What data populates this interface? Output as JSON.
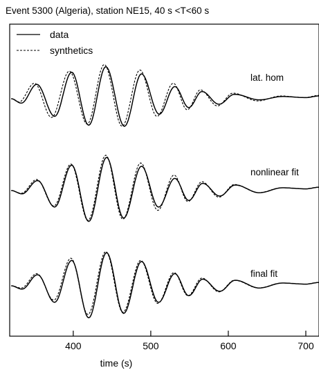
{
  "chart_data": {
    "type": "line",
    "title": "Event 5300 (Algeria), station NE15, 40 s <T<60 s",
    "xlabel": "time (s)",
    "ylabel": "",
    "xlim": [
      318,
      717
    ],
    "xticks": [
      400,
      500,
      600,
      700
    ],
    "xtick_labels": [
      "400",
      "500",
      "600",
      "700"
    ],
    "grid": false,
    "legend": {
      "position": "top-left",
      "entries": [
        {
          "label": "data",
          "style": "solid"
        },
        {
          "label": "synthetics",
          "style": "dashed"
        }
      ]
    },
    "panels": [
      {
        "label": "lat. hom",
        "data": {
          "x": [
            320,
            333,
            353,
            376,
            398,
            420,
            442,
            466,
            488,
            511,
            531,
            549,
            566,
            588,
            608,
            640,
            670,
            700,
            717
          ],
          "y": [
            0.0,
            -0.08,
            0.26,
            -0.32,
            0.48,
            -0.48,
            0.58,
            -0.5,
            0.45,
            -0.28,
            0.22,
            -0.16,
            0.13,
            -0.1,
            0.08,
            -0.02,
            0.04,
            0.02,
            0.05
          ]
        },
        "synthetics": {
          "x": [
            320,
            330,
            350,
            372,
            395,
            418,
            440,
            463,
            486,
            508,
            529,
            547,
            564,
            586,
            606,
            638,
            668,
            698,
            717
          ],
          "y": [
            0.0,
            -0.06,
            0.28,
            -0.34,
            0.5,
            -0.46,
            0.62,
            -0.5,
            0.52,
            -0.32,
            0.28,
            -0.2,
            0.16,
            -0.13,
            0.1,
            -0.04,
            0.05,
            0.02,
            0.06
          ]
        }
      },
      {
        "label": "nonlinear fit",
        "data": {
          "x": [
            320,
            334,
            354,
            376,
            398,
            420,
            443,
            465,
            488,
            510,
            531,
            549,
            567,
            589,
            609,
            640,
            670,
            700,
            717
          ],
          "y": [
            0.0,
            -0.06,
            0.18,
            -0.3,
            0.46,
            -0.56,
            0.6,
            -0.5,
            0.44,
            -0.3,
            0.22,
            -0.18,
            0.13,
            -0.1,
            0.1,
            -0.04,
            0.05,
            0.03,
            0.06
          ]
        },
        "synthetics": {
          "x": [
            320,
            333,
            353,
            375,
            397,
            419,
            442,
            464,
            487,
            509,
            530,
            548,
            566,
            588,
            608,
            639,
            669,
            699,
            717
          ],
          "y": [
            0.0,
            -0.05,
            0.2,
            -0.28,
            0.48,
            -0.54,
            0.64,
            -0.52,
            0.5,
            -0.36,
            0.28,
            -0.2,
            0.16,
            -0.12,
            0.11,
            -0.04,
            0.05,
            0.03,
            0.06
          ]
        }
      },
      {
        "label": "final fit",
        "data": {
          "x": [
            320,
            334,
            354,
            376,
            398,
            420,
            443,
            465,
            488,
            510,
            531,
            549,
            567,
            589,
            609,
            640,
            670,
            700,
            717
          ],
          "y": [
            0.0,
            -0.06,
            0.2,
            -0.3,
            0.46,
            -0.58,
            0.6,
            -0.5,
            0.44,
            -0.3,
            0.22,
            -0.18,
            0.12,
            -0.1,
            0.1,
            -0.04,
            0.05,
            0.03,
            0.06
          ]
        },
        "synthetics": {
          "x": [
            320,
            333,
            353,
            375,
            397,
            419,
            442,
            464,
            487,
            509,
            530,
            548,
            566,
            588,
            608,
            639,
            669,
            699,
            717
          ],
          "y": [
            0.0,
            -0.04,
            0.22,
            -0.26,
            0.5,
            -0.52,
            0.62,
            -0.48,
            0.46,
            -0.32,
            0.24,
            -0.18,
            0.14,
            -0.11,
            0.1,
            -0.04,
            0.05,
            0.03,
            0.06
          ]
        }
      }
    ]
  }
}
